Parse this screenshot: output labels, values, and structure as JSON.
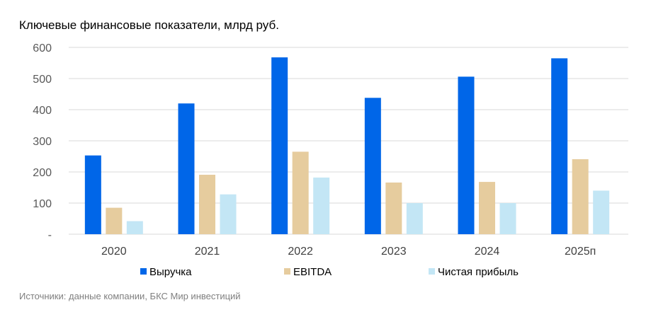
{
  "chart_data": {
    "type": "bar",
    "title": "Ключевые финансовые показатели, млрд руб.",
    "categories": [
      "2020",
      "2021",
      "2022",
      "2023",
      "2024",
      "2025п"
    ],
    "series": [
      {
        "name": "Выручка",
        "color": "#0066e8",
        "values": [
          253,
          420,
          568,
          438,
          506,
          565
        ]
      },
      {
        "name": "EBITDA",
        "color": "#e6cc9e",
        "values": [
          85,
          191,
          265,
          166,
          168,
          241
        ]
      },
      {
        "name": "Чистая прибыль",
        "color": "#c3e6f5",
        "values": [
          42,
          128,
          182,
          100,
          100,
          140
        ]
      }
    ],
    "ylim": [
      0,
      600
    ],
    "yticks": [
      {
        "value": 0,
        "label": "-"
      },
      {
        "value": 100,
        "label": "100"
      },
      {
        "value": 200,
        "label": "200"
      },
      {
        "value": 300,
        "label": "300"
      },
      {
        "value": 400,
        "label": "400"
      },
      {
        "value": 500,
        "label": "500"
      },
      {
        "value": 600,
        "label": "600"
      }
    ],
    "grid": true,
    "legend_position": "bottom",
    "source": "Источники: данные компании, БКС Мир инвестиций"
  }
}
